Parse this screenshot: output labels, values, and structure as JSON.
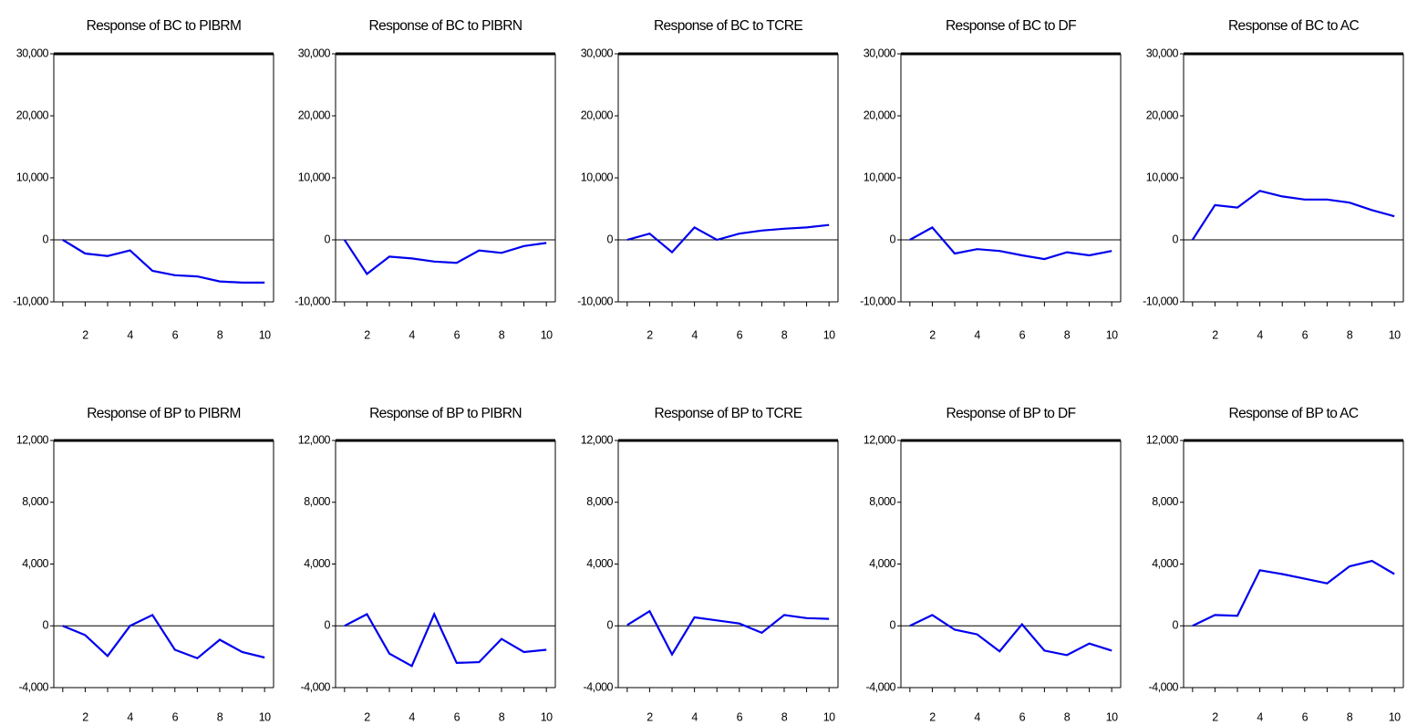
{
  "colors": {
    "series": "#0000ee",
    "axes": "#000000"
  },
  "chart_data": [
    {
      "type": "line",
      "title": "Response of BC to PIBRM",
      "x": [
        1,
        2,
        3,
        4,
        5,
        6,
        7,
        8,
        9,
        10
      ],
      "values": [
        0,
        -2200,
        -2600,
        -1700,
        -5000,
        -5700,
        -5900,
        -6700,
        -6900,
        -6900
      ],
      "ylim": [
        -10000,
        30000
      ],
      "yticks": [
        -10000,
        0,
        10000,
        20000,
        30000
      ],
      "ytick_labels": [
        "-10,000",
        "0",
        "10,000",
        "20,000",
        "30,000"
      ],
      "xticks": [
        2,
        4,
        6,
        8,
        10
      ],
      "xtick_labels": [
        "2",
        "4",
        "6",
        "8",
        "10"
      ]
    },
    {
      "type": "line",
      "title": "Response of BC to PIBRN",
      "x": [
        1,
        2,
        3,
        4,
        5,
        6,
        7,
        8,
        9,
        10
      ],
      "values": [
        0,
        -5500,
        -2700,
        -3000,
        -3500,
        -3700,
        -1700,
        -2100,
        -1000,
        -500
      ],
      "ylim": [
        -10000,
        30000
      ],
      "yticks": [
        -10000,
        0,
        10000,
        20000,
        30000
      ],
      "ytick_labels": [
        "-10,000",
        "0",
        "10,000",
        "20,000",
        "30,000"
      ],
      "xticks": [
        2,
        4,
        6,
        8,
        10
      ],
      "xtick_labels": [
        "2",
        "4",
        "6",
        "8",
        "10"
      ]
    },
    {
      "type": "line",
      "title": "Response of BC to TCRE",
      "x": [
        1,
        2,
        3,
        4,
        5,
        6,
        7,
        8,
        9,
        10
      ],
      "values": [
        0,
        1000,
        -2000,
        2000,
        0,
        1000,
        1500,
        1800,
        2000,
        2400
      ],
      "ylim": [
        -10000,
        30000
      ],
      "yticks": [
        -10000,
        0,
        10000,
        20000,
        30000
      ],
      "ytick_labels": [
        "-10,000",
        "0",
        "10,000",
        "20,000",
        "30,000"
      ],
      "xticks": [
        2,
        4,
        6,
        8,
        10
      ],
      "xtick_labels": [
        "2",
        "4",
        "6",
        "8",
        "10"
      ]
    },
    {
      "type": "line",
      "title": "Response of BC to DF",
      "x": [
        1,
        2,
        3,
        4,
        5,
        6,
        7,
        8,
        9,
        10
      ],
      "values": [
        0,
        2000,
        -2200,
        -1500,
        -1800,
        -2500,
        -3100,
        -2000,
        -2500,
        -1800
      ],
      "ylim": [
        -10000,
        30000
      ],
      "yticks": [
        -10000,
        0,
        10000,
        20000,
        30000
      ],
      "ytick_labels": [
        "-10,000",
        "0",
        "10,000",
        "20,000",
        "30,000"
      ],
      "xticks": [
        2,
        4,
        6,
        8,
        10
      ],
      "xtick_labels": [
        "2",
        "4",
        "6",
        "8",
        "10"
      ]
    },
    {
      "type": "line",
      "title": "Response of BC to AC",
      "x": [
        1,
        2,
        3,
        4,
        5,
        6,
        7,
        8,
        9,
        10
      ],
      "values": [
        0,
        5600,
        5200,
        7900,
        7000,
        6500,
        6500,
        6000,
        4800,
        3800
      ],
      "ylim": [
        -10000,
        30000
      ],
      "yticks": [
        -10000,
        0,
        10000,
        20000,
        30000
      ],
      "ytick_labels": [
        "-10,000",
        "0",
        "10,000",
        "20,000",
        "30,000"
      ],
      "xticks": [
        2,
        4,
        6,
        8,
        10
      ],
      "xtick_labels": [
        "2",
        "4",
        "6",
        "8",
        "10"
      ]
    },
    {
      "type": "line",
      "title": "Response of BP to PIBRM",
      "x": [
        1,
        2,
        3,
        4,
        5,
        6,
        7,
        8,
        9,
        10
      ],
      "values": [
        0,
        -600,
        -1950,
        0,
        700,
        -1550,
        -2100,
        -900,
        -1700,
        -2050
      ],
      "ylim": [
        -4000,
        12000
      ],
      "yticks": [
        -4000,
        0,
        4000,
        8000,
        12000
      ],
      "ytick_labels": [
        "-4,000",
        "0",
        "4,000",
        "8,000",
        "12,000"
      ],
      "xticks": [
        2,
        4,
        6,
        8,
        10
      ],
      "xtick_labels": [
        "2",
        "4",
        "6",
        "8",
        "10"
      ]
    },
    {
      "type": "line",
      "title": "Response of BP to PIBRN",
      "x": [
        1,
        2,
        3,
        4,
        5,
        6,
        7,
        8,
        9,
        10
      ],
      "values": [
        0,
        750,
        -1800,
        -2600,
        750,
        -2400,
        -2350,
        -850,
        -1700,
        -1550
      ],
      "ylim": [
        -4000,
        12000
      ],
      "yticks": [
        -4000,
        0,
        4000,
        8000,
        12000
      ],
      "ytick_labels": [
        "-4,000",
        "0",
        "4,000",
        "8,000",
        "12,000"
      ],
      "xticks": [
        2,
        4,
        6,
        8,
        10
      ],
      "xtick_labels": [
        "2",
        "4",
        "6",
        "8",
        "10"
      ]
    },
    {
      "type": "line",
      "title": "Response of BP to TCRE",
      "x": [
        1,
        2,
        3,
        4,
        5,
        6,
        7,
        8,
        9,
        10
      ],
      "values": [
        50,
        950,
        -1850,
        550,
        350,
        150,
        -450,
        700,
        500,
        450
      ],
      "ylim": [
        -4000,
        12000
      ],
      "yticks": [
        -4000,
        0,
        4000,
        8000,
        12000
      ],
      "ytick_labels": [
        "-4,000",
        "0",
        "4,000",
        "8,000",
        "12,000"
      ],
      "xticks": [
        2,
        4,
        6,
        8,
        10
      ],
      "xtick_labels": [
        "2",
        "4",
        "6",
        "8",
        "10"
      ]
    },
    {
      "type": "line",
      "title": "Response of BP to DF",
      "x": [
        1,
        2,
        3,
        4,
        5,
        6,
        7,
        8,
        9,
        10
      ],
      "values": [
        0,
        700,
        -250,
        -550,
        -1650,
        100,
        -1600,
        -1900,
        -1150,
        -1600
      ],
      "ylim": [
        -4000,
        12000
      ],
      "yticks": [
        -4000,
        0,
        4000,
        8000,
        12000
      ],
      "ytick_labels": [
        "-4,000",
        "0",
        "4,000",
        "8,000",
        "12,000"
      ],
      "xticks": [
        2,
        4,
        6,
        8,
        10
      ],
      "xtick_labels": [
        "2",
        "4",
        "6",
        "8",
        "10"
      ]
    },
    {
      "type": "line",
      "title": "Response of BP to AC",
      "x": [
        1,
        2,
        3,
        4,
        5,
        6,
        7,
        8,
        9,
        10
      ],
      "values": [
        0,
        700,
        650,
        3600,
        3350,
        3050,
        2750,
        3850,
        4200,
        3350
      ],
      "ylim": [
        -4000,
        12000
      ],
      "yticks": [
        -4000,
        0,
        4000,
        8000,
        12000
      ],
      "ytick_labels": [
        "-4,000",
        "0",
        "4,000",
        "8,000",
        "12,000"
      ],
      "xticks": [
        2,
        4,
        6,
        8,
        10
      ],
      "xtick_labels": [
        "2",
        "4",
        "6",
        "8",
        "10"
      ]
    }
  ]
}
